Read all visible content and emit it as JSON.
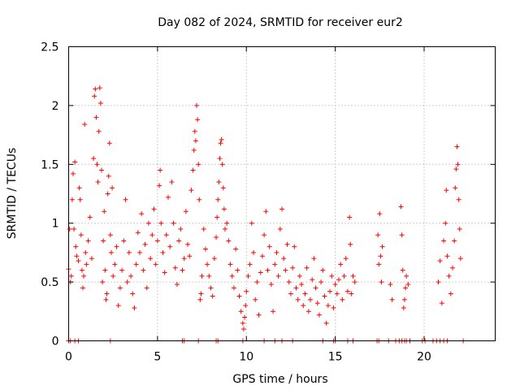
{
  "chart_data": {
    "type": "scatter",
    "title": "Day 082 of 2024, SRMTID for receiver eur2",
    "xlabel": "GPS time / hours",
    "ylabel": "SRMTID / TECUs",
    "xlim": [
      0,
      24
    ],
    "ylim": [
      0,
      2.5
    ],
    "xticks": [
      0,
      5,
      10,
      15,
      20
    ],
    "yticks": [
      0,
      0.5,
      1,
      1.5,
      2,
      2.5
    ],
    "xtick_labels": [
      "0",
      "5",
      "10",
      "15",
      "20"
    ],
    "ytick_labels": [
      "0",
      "0.5",
      "1",
      "1.5",
      "2",
      "2.5"
    ],
    "grid": true,
    "marker": "+",
    "color": "#ff0000",
    "points": [
      [
        0.0,
        0.61
      ],
      [
        0.05,
        0.95
      ],
      [
        0.1,
        0.5
      ],
      [
        0.15,
        0.55
      ],
      [
        0.2,
        1.2
      ],
      [
        0.25,
        1.42
      ],
      [
        0.3,
        0.95
      ],
      [
        0.35,
        1.52
      ],
      [
        0.4,
        0.8
      ],
      [
        0.45,
        0.72
      ],
      [
        0.55,
        0.68
      ],
      [
        0.6,
        1.3
      ],
      [
        0.65,
        1.2
      ],
      [
        0.7,
        0.9
      ],
      [
        0.75,
        0.6
      ],
      [
        0.8,
        0.45
      ],
      [
        0.85,
        0.55
      ],
      [
        0.9,
        1.84
      ],
      [
        0.95,
        0.75
      ],
      [
        1.0,
        0.65
      ],
      [
        1.1,
        0.85
      ],
      [
        1.2,
        1.05
      ],
      [
        1.3,
        0.7
      ],
      [
        1.4,
        1.55
      ],
      [
        1.45,
        2.08
      ],
      [
        1.5,
        2.14
      ],
      [
        1.55,
        1.9
      ],
      [
        1.6,
        1.5
      ],
      [
        1.65,
        1.35
      ],
      [
        1.7,
        1.78
      ],
      [
        1.75,
        2.15
      ],
      [
        1.8,
        2.02
      ],
      [
        1.85,
        1.45
      ],
      [
        1.9,
        0.5
      ],
      [
        1.95,
        0.85
      ],
      [
        2.0,
        1.1
      ],
      [
        2.05,
        0.6
      ],
      [
        2.1,
        0.35
      ],
      [
        2.15,
        0.4
      ],
      [
        2.2,
        1.25
      ],
      [
        2.25,
        1.4
      ],
      [
        2.3,
        1.68
      ],
      [
        2.35,
        0.9
      ],
      [
        2.4,
        0.75
      ],
      [
        2.45,
        1.3
      ],
      [
        2.5,
        0.55
      ],
      [
        2.6,
        0.65
      ],
      [
        2.7,
        0.8
      ],
      [
        2.8,
        0.3
      ],
      [
        2.9,
        0.45
      ],
      [
        3.0,
        0.6
      ],
      [
        3.1,
        0.85
      ],
      [
        3.2,
        1.2
      ],
      [
        3.3,
        0.5
      ],
      [
        3.4,
        0.75
      ],
      [
        3.5,
        0.55
      ],
      [
        3.6,
        0.4
      ],
      [
        3.7,
        0.28
      ],
      [
        3.8,
        0.65
      ],
      [
        3.9,
        0.92
      ],
      [
        4.0,
        0.75
      ],
      [
        4.1,
        1.08
      ],
      [
        4.2,
        0.6
      ],
      [
        4.3,
        0.82
      ],
      [
        4.4,
        0.45
      ],
      [
        4.5,
        1.0
      ],
      [
        4.6,
        0.7
      ],
      [
        4.7,
        0.9
      ],
      [
        4.8,
        1.12
      ],
      [
        4.9,
        0.65
      ],
      [
        5.0,
        0.85
      ],
      [
        5.1,
        1.32
      ],
      [
        5.15,
        1.45
      ],
      [
        5.2,
        1.0
      ],
      [
        5.3,
        0.75
      ],
      [
        5.4,
        0.58
      ],
      [
        5.5,
        0.9
      ],
      [
        5.6,
        1.22
      ],
      [
        5.7,
        0.8
      ],
      [
        5.8,
        1.35
      ],
      [
        5.9,
        1.0
      ],
      [
        6.0,
        0.62
      ],
      [
        6.1,
        0.48
      ],
      [
        6.2,
        0.85
      ],
      [
        6.3,
        0.95
      ],
      [
        6.4,
        0.6
      ],
      [
        6.5,
        0.7
      ],
      [
        6.6,
        1.1
      ],
      [
        6.7,
        0.82
      ],
      [
        6.8,
        0.72
      ],
      [
        6.9,
        1.28
      ],
      [
        7.0,
        1.45
      ],
      [
        7.05,
        1.62
      ],
      [
        7.1,
        1.78
      ],
      [
        7.15,
        1.7
      ],
      [
        7.2,
        2.0
      ],
      [
        7.25,
        1.88
      ],
      [
        7.3,
        1.5
      ],
      [
        7.35,
        1.2
      ],
      [
        7.4,
        0.35
      ],
      [
        7.45,
        0.4
      ],
      [
        7.5,
        0.55
      ],
      [
        7.6,
        0.95
      ],
      [
        7.7,
        0.78
      ],
      [
        7.8,
        0.65
      ],
      [
        7.9,
        0.55
      ],
      [
        8.0,
        0.45
      ],
      [
        8.1,
        0.38
      ],
      [
        8.2,
        0.7
      ],
      [
        8.3,
        0.88
      ],
      [
        8.35,
        1.05
      ],
      [
        8.4,
        1.2
      ],
      [
        8.45,
        1.35
      ],
      [
        8.5,
        1.55
      ],
      [
        8.55,
        1.68
      ],
      [
        8.6,
        1.71
      ],
      [
        8.65,
        1.5
      ],
      [
        8.7,
        1.3
      ],
      [
        8.75,
        1.12
      ],
      [
        8.8,
        0.95
      ],
      [
        8.9,
        1.0
      ],
      [
        9.0,
        0.85
      ],
      [
        9.1,
        0.65
      ],
      [
        9.2,
        0.55
      ],
      [
        9.3,
        0.45
      ],
      [
        9.4,
        0.78
      ],
      [
        9.5,
        0.6
      ],
      [
        9.6,
        0.38
      ],
      [
        9.7,
        0.25
      ],
      [
        9.8,
        0.15
      ],
      [
        9.85,
        0.1
      ],
      [
        9.9,
        0.2
      ],
      [
        9.95,
        0.3
      ],
      [
        10.0,
        0.42
      ],
      [
        10.1,
        0.55
      ],
      [
        10.2,
        0.65
      ],
      [
        10.3,
        1.0
      ],
      [
        10.4,
        0.75
      ],
      [
        10.5,
        0.35
      ],
      [
        10.6,
        0.5
      ],
      [
        10.7,
        0.22
      ],
      [
        10.8,
        0.58
      ],
      [
        10.9,
        0.72
      ],
      [
        11.0,
        0.9
      ],
      [
        11.1,
        1.1
      ],
      [
        11.2,
        0.6
      ],
      [
        11.3,
        0.8
      ],
      [
        11.4,
        0.48
      ],
      [
        11.5,
        0.25
      ],
      [
        11.6,
        0.65
      ],
      [
        11.7,
        0.75
      ],
      [
        11.8,
        0.55
      ],
      [
        11.9,
        0.95
      ],
      [
        12.0,
        1.12
      ],
      [
        12.1,
        0.7
      ],
      [
        12.2,
        0.6
      ],
      [
        12.3,
        0.82
      ],
      [
        12.4,
        0.5
      ],
      [
        12.5,
        0.4
      ],
      [
        12.6,
        0.62
      ],
      [
        12.7,
        0.8
      ],
      [
        12.8,
        0.45
      ],
      [
        12.9,
        0.35
      ],
      [
        13.0,
        0.55
      ],
      [
        13.1,
        0.48
      ],
      [
        13.2,
        0.3
      ],
      [
        13.3,
        0.4
      ],
      [
        13.4,
        0.62
      ],
      [
        13.5,
        0.25
      ],
      [
        13.6,
        0.35
      ],
      [
        13.7,
        0.52
      ],
      [
        13.8,
        0.7
      ],
      [
        13.9,
        0.45
      ],
      [
        14.0,
        0.32
      ],
      [
        14.1,
        0.22
      ],
      [
        14.2,
        0.5
      ],
      [
        14.3,
        0.6
      ],
      [
        14.4,
        0.38
      ],
      [
        14.5,
        0.15
      ],
      [
        14.6,
        0.3
      ],
      [
        14.7,
        0.42
      ],
      [
        14.8,
        0.55
      ],
      [
        14.9,
        0.28
      ],
      [
        15.0,
        0.48
      ],
      [
        15.1,
        0.4
      ],
      [
        15.2,
        0.52
      ],
      [
        15.3,
        0.65
      ],
      [
        15.4,
        0.35
      ],
      [
        15.5,
        0.55
      ],
      [
        15.6,
        0.7
      ],
      [
        15.7,
        0.42
      ],
      [
        15.8,
        1.05
      ],
      [
        15.85,
        0.82
      ],
      [
        15.9,
        0.4
      ],
      [
        16.0,
        0.55
      ],
      [
        16.1,
        0.5
      ],
      [
        17.4,
        0.9
      ],
      [
        17.45,
        0.65
      ],
      [
        17.5,
        1.08
      ],
      [
        17.55,
        0.72
      ],
      [
        17.6,
        0.5
      ],
      [
        17.65,
        0.8
      ],
      [
        18.1,
        0.48
      ],
      [
        18.2,
        0.35
      ],
      [
        18.7,
        1.14
      ],
      [
        18.75,
        0.9
      ],
      [
        18.8,
        0.6
      ],
      [
        18.85,
        0.28
      ],
      [
        18.9,
        0.35
      ],
      [
        18.95,
        0.45
      ],
      [
        19.0,
        0.55
      ],
      [
        19.1,
        0.48
      ],
      [
        20.8,
        0.5
      ],
      [
        20.9,
        0.68
      ],
      [
        21.0,
        0.32
      ],
      [
        21.1,
        0.85
      ],
      [
        21.2,
        1.0
      ],
      [
        21.25,
        1.28
      ],
      [
        21.3,
        0.72
      ],
      [
        21.4,
        0.55
      ],
      [
        21.5,
        0.4
      ],
      [
        21.6,
        0.62
      ],
      [
        21.7,
        0.85
      ],
      [
        21.75,
        1.3
      ],
      [
        21.8,
        1.46
      ],
      [
        21.85,
        1.65
      ],
      [
        21.9,
        1.5
      ],
      [
        21.95,
        1.2
      ],
      [
        22.0,
        0.95
      ],
      [
        22.05,
        0.7
      ],
      [
        0.0,
        0.0
      ],
      [
        0.1,
        0.0
      ],
      [
        0.35,
        0.0
      ],
      [
        0.55,
        0.0
      ],
      [
        2.35,
        0.0
      ],
      [
        6.4,
        0.0
      ],
      [
        6.5,
        0.0
      ],
      [
        7.3,
        0.0
      ],
      [
        8.3,
        0.0
      ],
      [
        8.4,
        0.0
      ],
      [
        9.8,
        0.0
      ],
      [
        11.0,
        0.0
      ],
      [
        11.6,
        0.0
      ],
      [
        12.0,
        0.0
      ],
      [
        12.6,
        0.0
      ],
      [
        14.3,
        0.0
      ],
      [
        14.9,
        0.0
      ],
      [
        15.0,
        0.0
      ],
      [
        15.7,
        0.0
      ],
      [
        16.0,
        0.0
      ],
      [
        17.35,
        0.0
      ],
      [
        17.45,
        0.0
      ],
      [
        18.0,
        0.0
      ],
      [
        18.4,
        0.0
      ],
      [
        18.6,
        0.0
      ],
      [
        18.75,
        0.0
      ],
      [
        18.9,
        0.0
      ],
      [
        19.0,
        0.0
      ],
      [
        19.2,
        0.0
      ],
      [
        19.9,
        0.0
      ],
      [
        20.05,
        0.0
      ],
      [
        20.5,
        0.0
      ],
      [
        20.7,
        0.0
      ],
      [
        20.9,
        0.0
      ],
      [
        21.1,
        0.0
      ],
      [
        21.3,
        0.0
      ],
      [
        22.2,
        0.0
      ]
    ]
  }
}
